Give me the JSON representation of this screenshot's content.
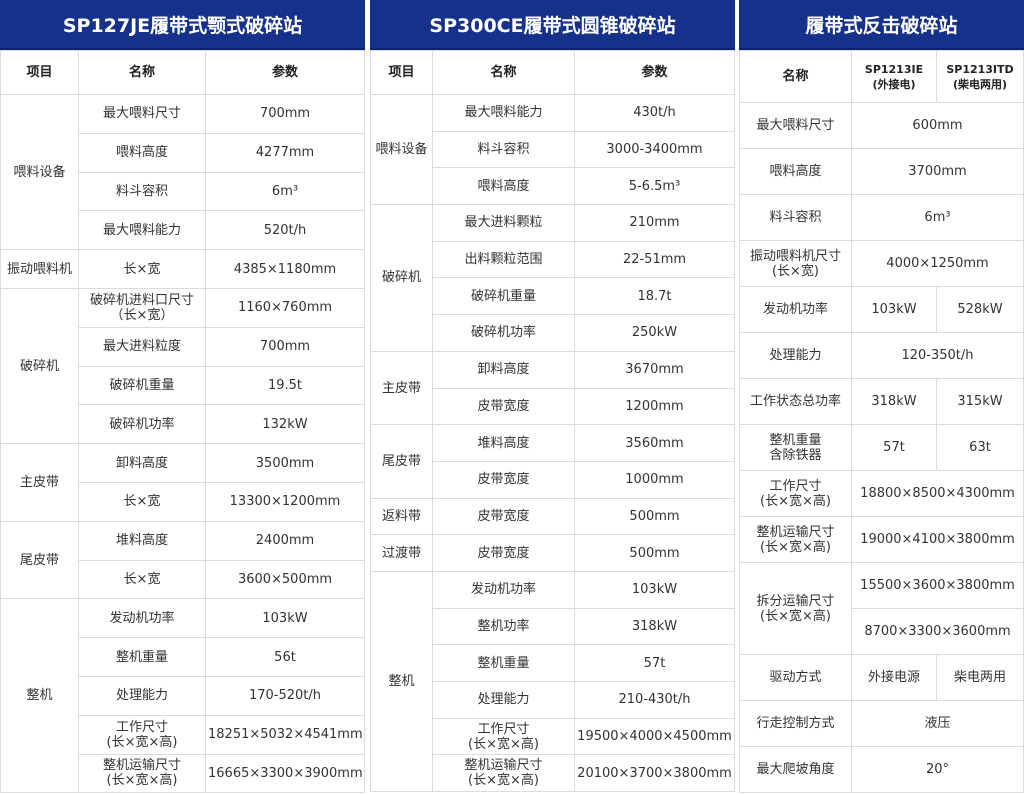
{
  "t1": {
    "title": "SP127JE履带式颚式破碎站",
    "headers": [
      "项目",
      "名称",
      "参数"
    ],
    "groups": [
      {
        "item": "喂料设备",
        "rows": [
          {
            "name": "最大喂料尺寸",
            "value": "700mm"
          },
          {
            "name": "喂料高度",
            "value": "4277mm"
          },
          {
            "name": "料斗容积",
            "value": "6m³"
          },
          {
            "name": "最大喂料能力",
            "value": "520t/h"
          }
        ]
      },
      {
        "item": "振动喂料机",
        "rows": [
          {
            "name": "长×宽",
            "value": "4385×1180mm"
          }
        ]
      },
      {
        "item": "破碎机",
        "rows": [
          {
            "name": "破碎机进料口尺寸\n（长×宽）",
            "value": "1160×760mm"
          },
          {
            "name": "最大进料粒度",
            "value": "700mm"
          },
          {
            "name": "破碎机重量",
            "value": "19.5t"
          },
          {
            "name": "破碎机功率",
            "value": "132kW"
          }
        ]
      },
      {
        "item": "主皮带",
        "rows": [
          {
            "name": "卸料高度",
            "value": "3500mm"
          },
          {
            "name": "长×宽",
            "value": "13300×1200mm"
          }
        ]
      },
      {
        "item": "尾皮带",
        "rows": [
          {
            "name": "堆料高度",
            "value": "2400mm"
          },
          {
            "name": "长×宽",
            "value": "3600×500mm"
          }
        ]
      },
      {
        "item": "整机",
        "rows": [
          {
            "name": "发动机功率",
            "value": "103kW"
          },
          {
            "name": "整机重量",
            "value": "56t"
          },
          {
            "name": "处理能力",
            "value": "170-520t/h"
          },
          {
            "name": "工作尺寸\n(长×宽×高)",
            "value": "18251×5032×4541mm"
          },
          {
            "name": "整机运输尺寸\n(长×宽×高)",
            "value": "16665×3300×3900mm"
          }
        ]
      }
    ]
  },
  "t2": {
    "title": "SP300CE履带式圆锥破碎站",
    "headers": [
      "项目",
      "名称",
      "参数"
    ],
    "groups": [
      {
        "item": "喂料设备",
        "rows": [
          {
            "name": "最大喂料能力",
            "value": "430t/h"
          },
          {
            "name": "料斗容积",
            "value": "3000-3400mm"
          },
          {
            "name": "喂料高度",
            "value": "5-6.5m³"
          }
        ]
      },
      {
        "item": "破碎机",
        "rows": [
          {
            "name": "最大进料颗粒",
            "value": "210mm"
          },
          {
            "name": "出料颗粒范围",
            "value": "22-51mm"
          },
          {
            "name": "破碎机重量",
            "value": "18.7t"
          },
          {
            "name": "破碎机功率",
            "value": "250kW"
          }
        ]
      },
      {
        "item": "主皮带",
        "rows": [
          {
            "name": "卸料高度",
            "value": "3670mm"
          },
          {
            "name": "皮带宽度",
            "value": "1200mm"
          }
        ]
      },
      {
        "item": "尾皮带",
        "rows": [
          {
            "name": "堆料高度",
            "value": "3560mm"
          },
          {
            "name": "皮带宽度",
            "value": "1000mm"
          }
        ]
      },
      {
        "item": "返料带",
        "rows": [
          {
            "name": "皮带宽度",
            "value": "500mm"
          }
        ]
      },
      {
        "item": "过渡带",
        "rows": [
          {
            "name": "皮带宽度",
            "value": "500mm"
          }
        ]
      },
      {
        "item": "整机",
        "rows": [
          {
            "name": "发动机功率",
            "value": "103kW"
          },
          {
            "name": "整机功率",
            "value": "318kW"
          },
          {
            "name": "整机重量",
            "value": "57t"
          },
          {
            "name": "处理能力",
            "value": "210-430t/h"
          },
          {
            "name": "工作尺寸\n(长×宽×高)",
            "value": "19500×4000×4500mm"
          },
          {
            "name": "整机运输尺寸\n(长×宽×高)",
            "value": "20100×3700×3800mm"
          }
        ]
      }
    ]
  },
  "t3": {
    "title": "履带式反击破碎站",
    "headers": [
      "名称",
      "SP1213IE\n(外接电)",
      "SP1213ITD\n(柴电两用)"
    ],
    "rows": [
      {
        "name": "最大喂料尺寸",
        "values": [
          "600mm"
        ]
      },
      {
        "name": "喂料高度",
        "values": [
          "3700mm"
        ]
      },
      {
        "name": "料斗容积",
        "values": [
          "6m³"
        ]
      },
      {
        "name": "振动喂料机尺寸\n(长×宽)",
        "values": [
          "4000×1250mm"
        ]
      },
      {
        "name": "发动机功率",
        "values": [
          "103kW",
          "528kW"
        ]
      },
      {
        "name": "处理能力",
        "values": [
          "120-350t/h"
        ]
      },
      {
        "name": "工作状态总功率",
        "values": [
          "318kW",
          "315kW"
        ]
      },
      {
        "name": "整机重量\n含除铁器",
        "values": [
          "57t",
          "63t"
        ]
      },
      {
        "name": "工作尺寸\n(长×宽×高)",
        "values": [
          "18800×8500×4300mm"
        ]
      },
      {
        "name": "整机运输尺寸\n(长×宽×高)",
        "values": [
          "19000×4100×3800mm"
        ]
      },
      {
        "name": "拆分运输尺寸\n(长×宽×高)",
        "multi": [
          "15500×3600×3800mm",
          "8700×3300×3600mm"
        ]
      },
      {
        "name": "驱动方式",
        "values": [
          "外接电源",
          "柴电两用"
        ]
      },
      {
        "name": "行走控制方式",
        "values": [
          "液压"
        ]
      },
      {
        "name": "最大爬坡角度",
        "values": [
          "20°"
        ]
      }
    ]
  },
  "colors": {
    "header": "#15318a",
    "border": "#dcdcdc"
  }
}
